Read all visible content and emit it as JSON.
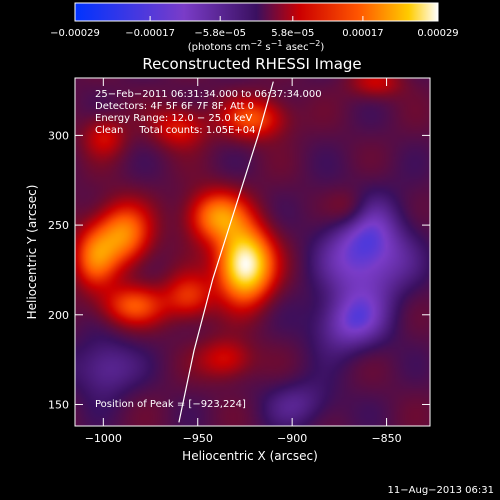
{
  "chart_data": {
    "type": "heatmap",
    "title": "Reconstructed RHESSI Image",
    "xlabel": "Heliocentric X (arcsec)",
    "ylabel": "Heliocentric Y (arcsec)",
    "xlim": [
      -1015,
      -827
    ],
    "ylim": [
      138,
      332
    ],
    "x_ticks": [
      -1000,
      -950,
      -900,
      -850
    ],
    "x_tick_labels": [
      "−1000",
      "−950",
      "−900",
      "−850"
    ],
    "y_ticks": [
      150,
      200,
      250,
      300
    ],
    "y_tick_labels": [
      "150",
      "200",
      "250",
      "300"
    ],
    "colorbar": {
      "min": -0.00029,
      "max": 0.00029,
      "ticks": [
        -0.00029,
        -0.00017,
        -5.8e-05,
        5.8e-05,
        0.00017,
        0.00029
      ],
      "tick_labels": [
        "−0.00029",
        "−0.00017",
        "−5.8e−05",
        "5.8e−05",
        "0.00017",
        "0.00029"
      ],
      "unit_parts": [
        "(photons cm",
        "−2",
        " s",
        "−1",
        " asec",
        "−2",
        ")"
      ],
      "colors": [
        "#0033ff",
        "#7a3cc8",
        "#4a1870",
        "#cc0000",
        "#ff5500",
        "#ffcc00",
        "#ffffff"
      ]
    },
    "annotations": {
      "line1": "25−Feb−2011 06:31:34.000 to 06:37:34.000",
      "line2": "Detectors: 4F 5F 6F 7F 8F, Att 0",
      "line3": "Energy Range: 12.0 − 25.0 keV",
      "line4": "Clean     Total counts: 1.05E+04",
      "peak": "Position of Peak = [−923,224]"
    },
    "sources": [
      {
        "x": -925,
        "y": 228,
        "amp": 1.0,
        "sx": 10,
        "sy": 14
      },
      {
        "x": -940,
        "y": 255,
        "amp": 0.55,
        "sx": 11,
        "sy": 10
      },
      {
        "x": -990,
        "y": 245,
        "amp": 0.55,
        "sx": 10,
        "sy": 12
      },
      {
        "x": -1005,
        "y": 232,
        "amp": 0.45,
        "sx": 8,
        "sy": 12
      },
      {
        "x": -985,
        "y": 205,
        "amp": 0.4,
        "sx": 12,
        "sy": 8
      },
      {
        "x": -955,
        "y": 210,
        "amp": 0.35,
        "sx": 9,
        "sy": 9
      },
      {
        "x": -920,
        "y": 310,
        "amp": 0.4,
        "sx": 12,
        "sy": 8
      },
      {
        "x": -960,
        "y": 305,
        "amp": 0.3,
        "sx": 10,
        "sy": 8
      },
      {
        "x": -1000,
        "y": 300,
        "amp": 0.25,
        "sx": 8,
        "sy": 8
      },
      {
        "x": -935,
        "y": 175,
        "amp": 0.28,
        "sx": 10,
        "sy": 8
      },
      {
        "x": -855,
        "y": 330,
        "amp": 0.22,
        "sx": 10,
        "sy": 6
      },
      {
        "x": -870,
        "y": 260,
        "amp": 0.15,
        "sx": 8,
        "sy": 8
      }
    ],
    "negatives": [
      {
        "x": -860,
        "y": 235,
        "amp": -0.35,
        "sx": 16,
        "sy": 20
      },
      {
        "x": -870,
        "y": 195,
        "amp": -0.25,
        "sx": 14,
        "sy": 12
      },
      {
        "x": -1000,
        "y": 170,
        "amp": -0.2,
        "sx": 12,
        "sy": 12
      },
      {
        "x": -895,
        "y": 150,
        "amp": -0.15,
        "sx": 14,
        "sy": 10
      }
    ],
    "limb": [
      [
        -960,
        140
      ],
      [
        -952,
        180
      ],
      [
        -942,
        220
      ],
      [
        -930,
        260
      ],
      [
        -918,
        300
      ],
      [
        -910,
        330
      ]
    ]
  },
  "footer": {
    "timestamp": "11−Aug−2013 06:31"
  }
}
